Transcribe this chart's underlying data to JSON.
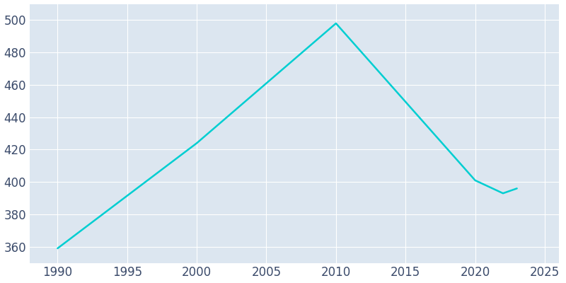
{
  "years": [
    1990,
    2000,
    2010,
    2020,
    2022,
    2023
  ],
  "population": [
    359,
    424,
    498,
    401,
    393,
    396
  ],
  "line_color": "#00CED1",
  "plot_background_color": "#dce6f0",
  "fig_background_color": "#ffffff",
  "grid_color": "#ffffff",
  "tick_color": "#3a4a6a",
  "xlim": [
    1988,
    2026
  ],
  "ylim": [
    350,
    510
  ],
  "yticks": [
    360,
    380,
    400,
    420,
    440,
    460,
    480,
    500
  ],
  "xticks": [
    1990,
    1995,
    2000,
    2005,
    2010,
    2015,
    2020,
    2025
  ],
  "line_width": 1.8,
  "figsize": [
    8.0,
    4.0
  ],
  "dpi": 100,
  "tick_labelsize": 12
}
